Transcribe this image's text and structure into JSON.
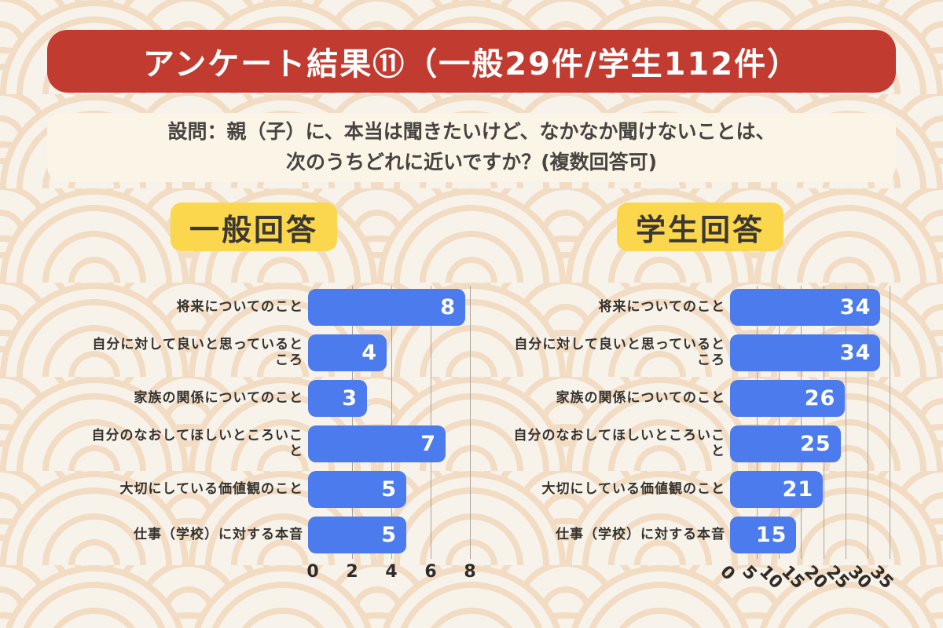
{
  "banner": {
    "title": "アンケート結果⑪（一般29件/学生112件）"
  },
  "question": {
    "line1": "設問：親（子）に、本当は聞きたいけど、なかなか聞けないことは、",
    "line2": "次のうちどれに近いですか？(複数回答可)"
  },
  "colors": {
    "banner_red": "#C23B31",
    "chip_yellow": "#FAD74D",
    "bar_blue": "#4B7BEC",
    "background_cream": "#F7F2E9",
    "pattern_orange": "#F2DCC4",
    "gridline_gray": "#ABA49A",
    "text_dark": "#35312D"
  },
  "chart_data": [
    {
      "type": "bar",
      "orientation": "horizontal",
      "title": "一般回答",
      "categories": [
        "将来についてのこと",
        "自分に対して良いと思っているところ",
        "家族の関係についてのこと",
        "自分のなおしてほしいところいこと",
        "大切にしている価値観のこと",
        "仕事（学校）に対する本音"
      ],
      "values": [
        8,
        4,
        3,
        7,
        5,
        5
      ],
      "xticks": [
        0,
        2,
        4,
        6,
        8
      ],
      "xlim": [
        0,
        8
      ],
      "tick_rotation": 0,
      "grid": true,
      "legend": false,
      "bar_color": "#4B7BEC"
    },
    {
      "type": "bar",
      "orientation": "horizontal",
      "title": "学生回答",
      "categories": [
        "将来についてのこと",
        "自分に対して良いと思っているところ",
        "家族の関係についてのこと",
        "自分のなおしてほしいところいこと",
        "大切にしている価値観のこと",
        "仕事（学校）に対する本音"
      ],
      "values": [
        34,
        34,
        26,
        25,
        21,
        15
      ],
      "xticks": [
        0,
        5,
        10,
        15,
        20,
        25,
        30,
        35
      ],
      "xlim": [
        0,
        35
      ],
      "tick_rotation": 45,
      "grid": true,
      "legend": false,
      "bar_color": "#4B7BEC"
    }
  ]
}
